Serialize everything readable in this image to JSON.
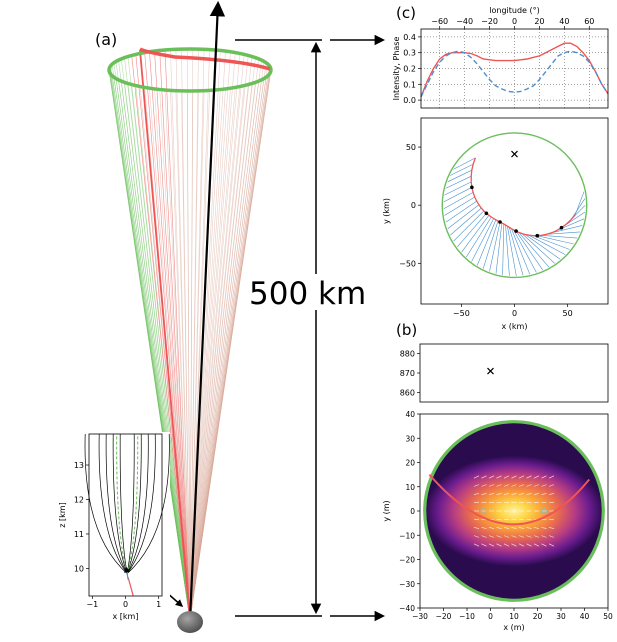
{
  "panel_labels": {
    "a": "(a)",
    "b": "(b)",
    "c": "(c)"
  },
  "scale_label": "500 km",
  "colors": {
    "green": "#6abf5a",
    "red": "#ef5555",
    "blue": "#4a90d0",
    "black": "#000000",
    "asteroid": "#707070"
  },
  "chart_data": [
    {
      "id": "c-profile",
      "type": "line",
      "xlabel": "longitude (°)",
      "ylabel": "Intensity, Phase",
      "xlim": [
        -75,
        75
      ],
      "ylim": [
        -0.05,
        0.45
      ],
      "xticks": [
        -60,
        -40,
        -20,
        0,
        20,
        40,
        60
      ],
      "yticks": [
        0.0,
        0.1,
        0.2,
        0.3,
        0.4
      ],
      "ytick_labels": [
        "0.0",
        "0.1",
        "0.2",
        "0.3",
        "0.4"
      ],
      "grid": true,
      "series": [
        {
          "style": "solid",
          "color": "#ef5555",
          "x": [
            -75,
            -70,
            -65,
            -60,
            -55,
            -50,
            -45,
            -40,
            -35,
            -30,
            -25,
            -20,
            -15,
            -10,
            -5,
            0,
            5,
            10,
            15,
            20,
            25,
            30,
            35,
            40,
            45,
            50,
            55,
            60,
            65,
            70,
            75
          ],
          "y": [
            0.02,
            0.12,
            0.2,
            0.26,
            0.29,
            0.3,
            0.3,
            0.3,
            0.295,
            0.28,
            0.26,
            0.255,
            0.25,
            0.25,
            0.25,
            0.25,
            0.255,
            0.26,
            0.27,
            0.28,
            0.3,
            0.32,
            0.34,
            0.36,
            0.36,
            0.34,
            0.3,
            0.25,
            0.18,
            0.1,
            0.04
          ]
        },
        {
          "style": "dashed",
          "color": "#4a90d0",
          "x": [
            -75,
            -70,
            -65,
            -60,
            -55,
            -50,
            -45,
            -40,
            -35,
            -30,
            -25,
            -20,
            -15,
            -10,
            -5,
            0,
            5,
            10,
            15,
            20,
            25,
            30,
            35,
            40,
            45,
            50,
            55,
            60,
            65,
            70,
            75
          ],
          "y": [
            0.02,
            0.1,
            0.18,
            0.24,
            0.28,
            0.3,
            0.31,
            0.3,
            0.27,
            0.23,
            0.18,
            0.13,
            0.09,
            0.07,
            0.055,
            0.05,
            0.055,
            0.07,
            0.09,
            0.13,
            0.18,
            0.23,
            0.28,
            0.3,
            0.31,
            0.3,
            0.28,
            0.24,
            0.18,
            0.1,
            0.04
          ]
        }
      ]
    },
    {
      "id": "c-map",
      "type": "line",
      "xlabel": "x (km)",
      "ylabel": "y (km)",
      "xlim": [
        -88,
        88
      ],
      "ylim": [
        -85,
        75
      ],
      "xticks": [
        -50,
        0,
        50
      ],
      "yticks": [
        -50,
        0,
        50
      ],
      "grid": false,
      "cross": {
        "x": 0,
        "y": 44
      },
      "circle_radius": 68
    },
    {
      "id": "b-top",
      "type": "scatter",
      "xlabel": "",
      "ylabel": "",
      "xlim": [
        -30,
        50
      ],
      "ylim": [
        855,
        885
      ],
      "yticks": [
        860,
        870,
        880
      ],
      "points": [
        {
          "x": 0,
          "y": 871
        }
      ]
    },
    {
      "id": "b-map",
      "type": "heatmap",
      "xlabel": "x (m)",
      "ylabel": "y (m)",
      "xlim": [
        -30,
        50
      ],
      "ylim": [
        -40,
        40
      ],
      "xticks": [
        -30,
        -20,
        -10,
        0,
        10,
        20,
        30,
        40,
        50
      ],
      "yticks": [
        -40,
        -30,
        -20,
        -10,
        0,
        10,
        20,
        30,
        40
      ],
      "center": [
        10,
        0
      ],
      "radius": 38,
      "markers": [
        {
          "x": -3,
          "y": 0
        },
        {
          "x": 23,
          "y": 0
        }
      ]
    },
    {
      "id": "inset",
      "type": "line",
      "xlabel": "x [km]",
      "ylabel": "z [km]",
      "xlim": [
        -1.1,
        1.1
      ],
      "ylim": [
        9.2,
        13.9
      ],
      "xticks": [
        -1,
        0,
        1
      ],
      "yticks": [
        10,
        11,
        12,
        13
      ]
    }
  ]
}
